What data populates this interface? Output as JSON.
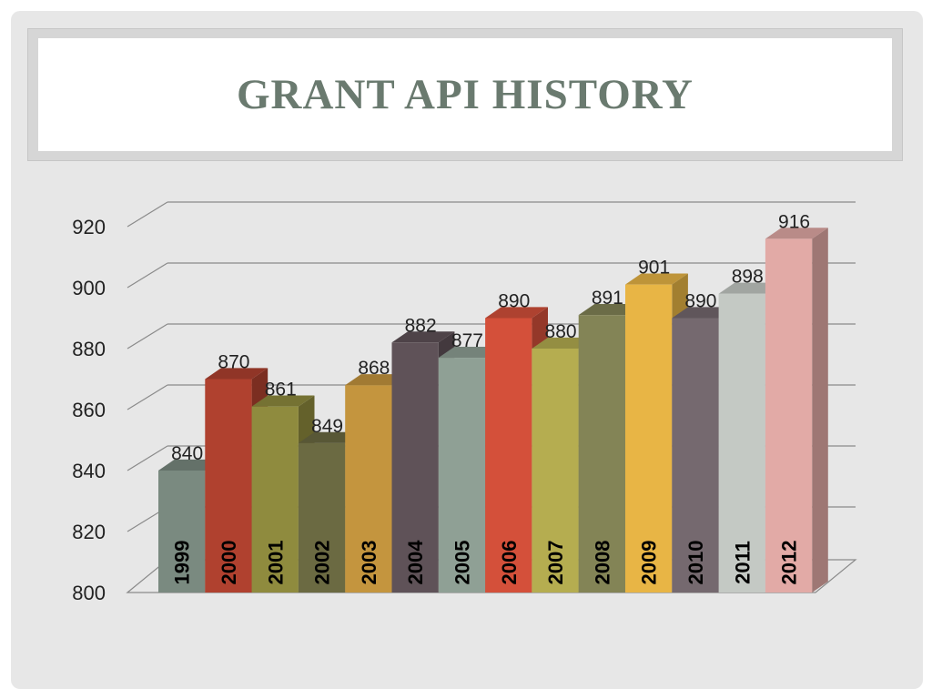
{
  "slide": {
    "title": "GRANT API HISTORY"
  },
  "chart_data": {
    "type": "bar",
    "categories": [
      "1999",
      "2000",
      "2001",
      "2002",
      "2003",
      "2004",
      "2005",
      "2006",
      "2007",
      "2008",
      "2009",
      "2010",
      "2011",
      "2012"
    ],
    "values": [
      840,
      870,
      861,
      849,
      868,
      882,
      877,
      890,
      880,
      891,
      901,
      890,
      898,
      916
    ],
    "data_labels": [
      "840",
      "870",
      "861",
      "849",
      "868",
      "882",
      "877",
      "890",
      "880",
      "891",
      "901",
      "890",
      "898",
      "916"
    ],
    "ylim": [
      800,
      920
    ],
    "yticks": [
      "800",
      "820",
      "840",
      "860",
      "880",
      "900",
      "920"
    ],
    "grid": true,
    "style": "3d",
    "category_labels_inside_bars": true,
    "bar_colors": [
      "#7a8a80",
      "#b0412f",
      "#8f8b3e",
      "#6b6a42",
      "#c4953e",
      "#5f5258",
      "#8fa095",
      "#d4503a",
      "#b5ad50",
      "#838456",
      "#e8b545",
      "#75696f",
      "#c4c9c4",
      "#e2aaa6"
    ]
  }
}
